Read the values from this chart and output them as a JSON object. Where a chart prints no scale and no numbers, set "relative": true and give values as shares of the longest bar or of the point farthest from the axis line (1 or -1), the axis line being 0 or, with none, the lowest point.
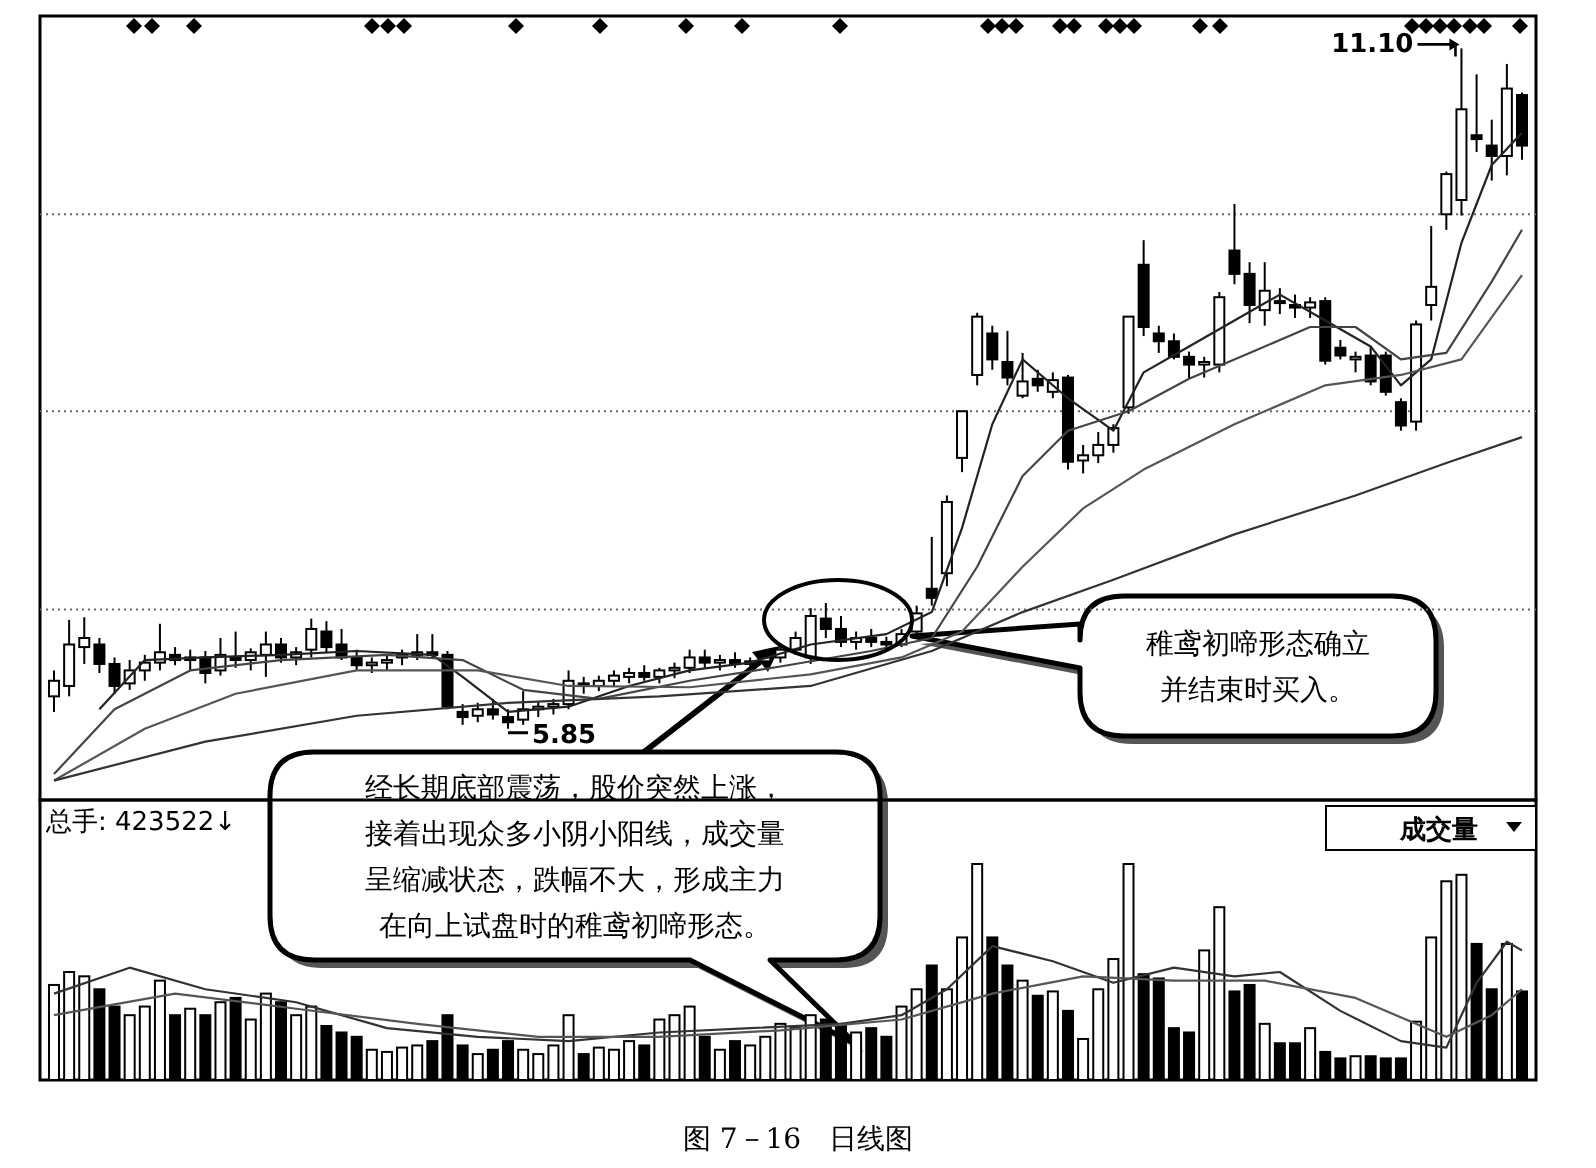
{
  "chart_data": [
    {
      "type": "candlestick",
      "categories": [
        null,
        null,
        null,
        null,
        null,
        null,
        null,
        null,
        null,
        null,
        null,
        null,
        null,
        null,
        null,
        null,
        null,
        null,
        null,
        null,
        null,
        null,
        null,
        null,
        null,
        null,
        null,
        null,
        null,
        null,
        null,
        null,
        null,
        null,
        null,
        null,
        null,
        null,
        null,
        null,
        null,
        null,
        null,
        null,
        null,
        null,
        null,
        null,
        null,
        null,
        null,
        null,
        null,
        null,
        null,
        null,
        null,
        null,
        null,
        null,
        null,
        null,
        null,
        null,
        null,
        null,
        null,
        null,
        null,
        null,
        null,
        null,
        null,
        null,
        null,
        null,
        null,
        null,
        null,
        null,
        null,
        null,
        null,
        null,
        null,
        null,
        null,
        null,
        null,
        null,
        null,
        null,
        null,
        null,
        null,
        null,
        null,
        null
      ],
      "ohlc": [
        [
          6.1,
          6.3,
          5.98,
          6.22
        ],
        [
          6.18,
          6.69,
          6.1,
          6.5
        ],
        [
          6.48,
          6.71,
          6.35,
          6.55
        ],
        [
          6.5,
          6.55,
          6.28,
          6.35
        ],
        [
          6.35,
          6.4,
          6.12,
          6.18
        ],
        [
          6.2,
          6.38,
          6.15,
          6.3
        ],
        [
          6.3,
          6.42,
          6.22,
          6.36
        ],
        [
          6.36,
          6.66,
          6.3,
          6.44
        ],
        [
          6.42,
          6.48,
          6.34,
          6.38
        ],
        [
          6.38,
          6.46,
          6.3,
          6.4
        ],
        [
          6.4,
          6.45,
          6.2,
          6.28
        ],
        [
          6.3,
          6.55,
          6.26,
          6.42
        ],
        [
          6.4,
          6.6,
          6.32,
          6.38
        ],
        [
          6.38,
          6.47,
          6.3,
          6.44
        ],
        [
          6.42,
          6.6,
          6.25,
          6.5
        ],
        [
          6.5,
          6.55,
          6.36,
          6.4
        ],
        [
          6.4,
          6.48,
          6.34,
          6.44
        ],
        [
          6.46,
          6.7,
          6.4,
          6.62
        ],
        [
          6.6,
          6.68,
          6.44,
          6.48
        ],
        [
          6.5,
          6.62,
          6.38,
          6.4
        ],
        [
          6.4,
          6.46,
          6.3,
          6.34
        ],
        [
          6.34,
          6.4,
          6.28,
          6.36
        ],
        [
          6.36,
          6.42,
          6.3,
          6.38
        ],
        [
          6.4,
          6.46,
          6.34,
          6.42
        ],
        [
          6.42,
          6.58,
          6.38,
          6.44
        ],
        [
          6.44,
          6.58,
          6.4,
          6.42
        ],
        [
          6.42,
          6.45,
          6.0,
          6.02
        ],
        [
          5.98,
          6.04,
          5.88,
          5.94
        ],
        [
          5.95,
          6.05,
          5.9,
          6.0
        ],
        [
          6.0,
          6.08,
          5.92,
          5.96
        ],
        [
          5.94,
          6.0,
          5.85,
          5.9
        ],
        [
          5.92,
          6.14,
          5.88,
          6.0
        ],
        [
          6.0,
          6.06,
          5.94,
          6.02
        ],
        [
          6.02,
          6.08,
          5.96,
          6.04
        ],
        [
          6.04,
          6.3,
          6.0,
          6.22
        ],
        [
          6.2,
          6.25,
          6.12,
          6.18
        ],
        [
          6.18,
          6.26,
          6.14,
          6.22
        ],
        [
          6.22,
          6.3,
          6.18,
          6.26
        ],
        [
          6.25,
          6.32,
          6.2,
          6.28
        ],
        [
          6.28,
          6.34,
          6.22,
          6.25
        ],
        [
          6.25,
          6.32,
          6.2,
          6.3
        ],
        [
          6.3,
          6.36,
          6.24,
          6.32
        ],
        [
          6.32,
          6.46,
          6.28,
          6.4
        ],
        [
          6.4,
          6.46,
          6.32,
          6.36
        ],
        [
          6.36,
          6.42,
          6.3,
          6.38
        ],
        [
          6.38,
          6.44,
          6.32,
          6.35
        ],
        [
          6.35,
          6.4,
          6.3,
          6.37
        ],
        [
          6.37,
          6.44,
          6.33,
          6.4
        ],
        [
          6.4,
          6.5,
          6.36,
          6.46
        ],
        [
          6.46,
          6.6,
          6.42,
          6.55
        ],
        [
          6.4,
          6.78,
          6.35,
          6.72
        ],
        [
          6.7,
          6.82,
          6.55,
          6.62
        ],
        [
          6.62,
          6.72,
          6.48,
          6.52
        ],
        [
          6.52,
          6.6,
          6.46,
          6.55
        ],
        [
          6.55,
          6.62,
          6.48,
          6.52
        ],
        [
          6.52,
          6.56,
          6.46,
          6.5
        ],
        [
          6.5,
          6.62,
          6.48,
          6.58
        ],
        [
          6.6,
          6.8,
          6.58,
          6.74
        ],
        [
          6.93,
          7.33,
          6.8,
          6.86
        ],
        [
          7.05,
          7.65,
          6.95,
          7.6
        ],
        [
          7.94,
          8.3,
          7.83,
          8.3
        ],
        [
          8.58,
          9.06,
          8.5,
          9.03
        ],
        [
          8.9,
          8.96,
          8.62,
          8.7
        ],
        [
          8.68,
          8.92,
          8.5,
          8.56
        ],
        [
          8.42,
          8.75,
          8.4,
          8.53
        ],
        [
          8.55,
          8.62,
          8.45,
          8.5
        ],
        [
          8.45,
          8.6,
          8.4,
          8.54
        ],
        [
          8.56,
          8.58,
          7.85,
          7.91
        ],
        [
          7.92,
          8.04,
          7.82,
          7.96
        ],
        [
          7.96,
          8.14,
          7.9,
          8.04
        ],
        [
          8.04,
          8.2,
          7.98,
          8.17
        ],
        [
          8.33,
          9.03,
          8.28,
          9.03
        ],
        [
          9.43,
          9.62,
          8.88,
          8.95
        ],
        [
          8.9,
          8.96,
          8.75,
          8.84
        ],
        [
          8.84,
          8.9,
          8.7,
          8.72
        ],
        [
          8.72,
          8.76,
          8.55,
          8.66
        ],
        [
          8.66,
          8.72,
          8.56,
          8.68
        ],
        [
          8.66,
          9.22,
          8.6,
          9.18
        ],
        [
          9.54,
          9.9,
          9.28,
          9.36
        ],
        [
          9.36,
          9.45,
          8.98,
          9.12
        ],
        [
          9.08,
          9.45,
          8.96,
          9.23
        ],
        [
          9.15,
          9.25,
          9.05,
          9.14
        ],
        [
          9.12,
          9.2,
          9.02,
          9.1
        ],
        [
          9.1,
          9.18,
          9.02,
          9.14
        ],
        [
          9.15,
          9.18,
          8.66,
          8.69
        ],
        [
          8.79,
          8.85,
          8.7,
          8.73
        ],
        [
          8.7,
          8.76,
          8.6,
          8.72
        ],
        [
          8.73,
          8.8,
          8.5,
          8.53
        ],
        [
          8.73,
          8.76,
          8.42,
          8.45
        ],
        [
          8.37,
          8.4,
          8.15,
          8.19
        ],
        [
          8.22,
          9.0,
          8.15,
          8.97
        ],
        [
          9.12,
          9.73,
          9.0,
          9.26
        ],
        [
          9.82,
          10.15,
          9.7,
          10.13
        ],
        [
          9.93,
          11.1,
          9.81,
          10.63
        ],
        [
          10.43,
          10.9,
          10.3,
          10.4
        ],
        [
          10.35,
          10.55,
          10.08,
          10.27
        ],
        [
          10.27,
          10.98,
          10.12,
          10.79
        ],
        [
          10.74,
          10.76,
          10.24,
          10.35
        ]
      ],
      "series": [
        {
          "type": "line",
          "color": "#222222",
          "values": [
            null,
            null,
            null,
            6.0,
            null,
            null,
            6.38,
            null,
            null,
            null,
            6.4,
            null,
            null,
            null,
            null,
            6.42,
            null,
            null,
            null,
            null,
            6.45,
            null,
            null,
            null,
            null,
            6.42,
            null,
            6.25,
            null,
            null,
            5.98,
            null,
            null,
            null,
            6.02,
            null,
            null,
            null,
            6.18,
            null,
            null,
            null,
            6.3,
            null,
            null,
            null,
            6.36,
            null,
            null,
            null,
            6.5,
            null,
            null,
            null,
            null,
            6.58,
            null,
            null,
            6.75,
            null,
            7.4,
            null,
            8.2,
            null,
            8.7,
            null,
            null,
            8.4,
            null,
            null,
            8.15,
            null,
            8.6,
            null,
            null,
            8.8,
            null,
            null,
            9.0,
            null,
            null,
            9.2,
            null,
            null,
            9.0,
            null,
            null,
            8.8,
            null,
            8.5,
            null,
            8.7,
            null,
            9.6,
            null,
            10.2,
            null,
            10.45
          ]
        },
        {
          "type": "line",
          "color": "#444444",
          "values": [
            5.5,
            null,
            null,
            null,
            6.0,
            null,
            null,
            null,
            null,
            6.3,
            null,
            null,
            null,
            null,
            null,
            6.38,
            null,
            null,
            null,
            null,
            null,
            null,
            6.42,
            null,
            null,
            null,
            null,
            6.38,
            null,
            null,
            null,
            6.15,
            null,
            null,
            null,
            null,
            6.08,
            null,
            null,
            null,
            null,
            null,
            6.22,
            null,
            null,
            null,
            null,
            null,
            6.33,
            null,
            null,
            null,
            null,
            null,
            6.45,
            null,
            null,
            null,
            6.55,
            null,
            null,
            7.1,
            null,
            null,
            7.8,
            null,
            null,
            8.15,
            null,
            null,
            null,
            8.3,
            null,
            null,
            null,
            8.55,
            null,
            null,
            null,
            8.75,
            null,
            null,
            null,
            8.95,
            null,
            null,
            8.95,
            null,
            null,
            8.7,
            null,
            null,
            8.75,
            null,
            null,
            9.3,
            null,
            9.7
          ]
        },
        {
          "type": "line",
          "color": "#555555",
          "values": [
            5.45,
            null,
            null,
            null,
            null,
            null,
            5.85,
            null,
            null,
            null,
            null,
            null,
            6.12,
            null,
            null,
            null,
            null,
            null,
            null,
            null,
            6.3,
            null,
            null,
            null,
            null,
            null,
            null,
            null,
            6.3,
            null,
            null,
            null,
            null,
            null,
            6.18,
            null,
            null,
            null,
            null,
            null,
            null,
            null,
            6.17,
            null,
            null,
            null,
            null,
            null,
            null,
            null,
            6.27,
            null,
            null,
            null,
            null,
            null,
            6.4,
            null,
            null,
            null,
            6.6,
            null,
            null,
            null,
            7.1,
            null,
            null,
            null,
            7.55,
            null,
            null,
            null,
            7.85,
            null,
            null,
            null,
            null,
            null,
            8.2,
            null,
            null,
            null,
            null,
            null,
            8.5,
            null,
            null,
            null,
            null,
            8.58,
            null,
            null,
            null,
            8.7,
            null,
            null,
            null,
            9.35
          ]
        },
        {
          "type": "line",
          "color": "#333333",
          "values": [
            5.45,
            null,
            null,
            null,
            null,
            null,
            null,
            null,
            null,
            null,
            5.75,
            null,
            null,
            null,
            null,
            null,
            null,
            null,
            null,
            null,
            5.95,
            null,
            null,
            null,
            null,
            null,
            null,
            null,
            null,
            null,
            6.05,
            null,
            null,
            null,
            null,
            null,
            null,
            null,
            null,
            null,
            6.1,
            null,
            null,
            null,
            null,
            null,
            null,
            null,
            null,
            null,
            6.18,
            null,
            null,
            null,
            null,
            null,
            null,
            null,
            6.45,
            null,
            null,
            null,
            null,
            null,
            6.75,
            null,
            null,
            null,
            null,
            null,
            7.0,
            null,
            null,
            null,
            null,
            null,
            null,
            null,
            7.35,
            null,
            null,
            null,
            null,
            null,
            null,
            null,
            7.65,
            null,
            null,
            null,
            null,
            null,
            7.9,
            null,
            null,
            null,
            null,
            8.1
          ]
        }
      ],
      "ylim": [
        5.3,
        11.35
      ],
      "yticks": [
        {
          "value": 6.77,
          "label": null
        },
        {
          "value": 8.3,
          "label": null
        },
        {
          "value": 9.82,
          "label": null
        }
      ],
      "grid": "y",
      "annotations": [
        "11.10",
        "5.85",
        "经长期底部震荡，股价突然上涨，接着出现众多小阴小阳线，成交量呈缩减状态，跌幅不大，形成主力在向上试盘时的稚鸢初啼形态。",
        "稚鸢初啼形态确立并结束时买入。",
        "图 7－16　日线图"
      ]
    },
    {
      "type": "bar",
      "relative": true,
      "categories": [
        null,
        null,
        null,
        null,
        null,
        null,
        null,
        null,
        null,
        null,
        null,
        null,
        null,
        null,
        null,
        null,
        null,
        null,
        null,
        null,
        null,
        null,
        null,
        null,
        null,
        null,
        null,
        null,
        null,
        null,
        null,
        null,
        null,
        null,
        null,
        null,
        null,
        null,
        null,
        null,
        null,
        null,
        null,
        null,
        null,
        null,
        null,
        null,
        null,
        null,
        null,
        null,
        null,
        null,
        null,
        null,
        null,
        null,
        null,
        null,
        null,
        null,
        null,
        null,
        null,
        null,
        null,
        null,
        null,
        null,
        null,
        null,
        null,
        null,
        null,
        null,
        null,
        null,
        null,
        null,
        null,
        null,
        null,
        null,
        null,
        null,
        null,
        null,
        null,
        null,
        null,
        null,
        null,
        null,
        null,
        null,
        null,
        null
      ],
      "series": [
        {
          "type": "bar",
          "color": "#000000",
          "values": [
            0.44,
            0.5,
            0.48,
            0.42,
            0.34,
            0.3,
            0.34,
            0.46,
            0.3,
            0.33,
            0.3,
            0.36,
            0.38,
            0.28,
            0.4,
            0.36,
            0.3,
            0.34,
            0.25,
            0.22,
            0.2,
            0.14,
            0.13,
            0.15,
            0.16,
            0.18,
            0.3,
            0.16,
            0.12,
            0.14,
            0.18,
            0.14,
            0.12,
            0.16,
            0.3,
            0.12,
            0.15,
            0.14,
            0.18,
            0.16,
            0.28,
            0.3,
            0.34,
            0.2,
            0.14,
            0.18,
            0.16,
            0.2,
            0.26,
            0.24,
            0.3,
            0.28,
            0.26,
            0.22,
            0.24,
            0.2,
            0.34,
            0.42,
            0.53,
            0.42,
            0.66,
            1.0,
            0.66,
            0.53,
            0.46,
            0.39,
            0.41,
            0.32,
            0.19,
            0.42,
            0.56,
            1.0,
            0.49,
            0.47,
            0.24,
            0.22,
            0.6,
            0.8,
            0.41,
            0.44,
            0.26,
            0.17,
            0.17,
            0.24,
            0.13,
            0.1,
            0.11,
            0.11,
            0.1,
            0.1,
            0.27,
            0.66,
            0.92,
            0.95,
            0.63,
            0.42,
            0.63,
            0.41
          ]
        },
        {
          "type": "line",
          "color": "#333333",
          "values": [
            0.4,
            null,
            null,
            null,
            null,
            0.52,
            null,
            null,
            null,
            null,
            0.42,
            null,
            null,
            null,
            null,
            null,
            0.36,
            null,
            null,
            null,
            null,
            null,
            0.24,
            null,
            null,
            null,
            null,
            null,
            0.2,
            null,
            null,
            null,
            null,
            null,
            0.18,
            null,
            null,
            null,
            null,
            null,
            0.22,
            null,
            null,
            null,
            null,
            null,
            0.24,
            null,
            null,
            null,
            null,
            null,
            0.26,
            null,
            null,
            null,
            0.3,
            null,
            null,
            0.42,
            null,
            null,
            0.62,
            null,
            null,
            null,
            0.55,
            null,
            null,
            null,
            0.45,
            null,
            null,
            null,
            0.52,
            null,
            null,
            null,
            0.48,
            null,
            null,
            0.5,
            null,
            null,
            null,
            0.32,
            null,
            null,
            null,
            0.18,
            null,
            null,
            0.15,
            null,
            0.45,
            null,
            0.64,
            0.6
          ]
        },
        {
          "type": "line",
          "color": "#555555",
          "values": [
            0.3,
            null,
            null,
            null,
            null,
            null,
            null,
            null,
            0.4,
            null,
            null,
            null,
            null,
            null,
            null,
            null,
            0.33,
            null,
            null,
            null,
            null,
            null,
            null,
            null,
            0.26,
            null,
            null,
            null,
            null,
            null,
            null,
            null,
            0.2,
            null,
            null,
            null,
            null,
            null,
            null,
            null,
            0.2,
            null,
            null,
            null,
            null,
            null,
            null,
            null,
            0.23,
            null,
            null,
            null,
            null,
            null,
            null,
            null,
            0.28,
            null,
            null,
            null,
            null,
            null,
            0.4,
            null,
            null,
            null,
            null,
            null,
            0.48,
            null,
            null,
            null,
            null,
            null,
            0.46,
            null,
            null,
            null,
            null,
            null,
            0.46,
            null,
            null,
            null,
            null,
            null,
            0.38,
            null,
            null,
            null,
            null,
            null,
            0.2,
            null,
            null,
            0.3,
            null,
            0.42
          ]
        }
      ],
      "annotations": [
        "总手: 423522↓",
        "成交量"
      ]
    }
  ]
}
